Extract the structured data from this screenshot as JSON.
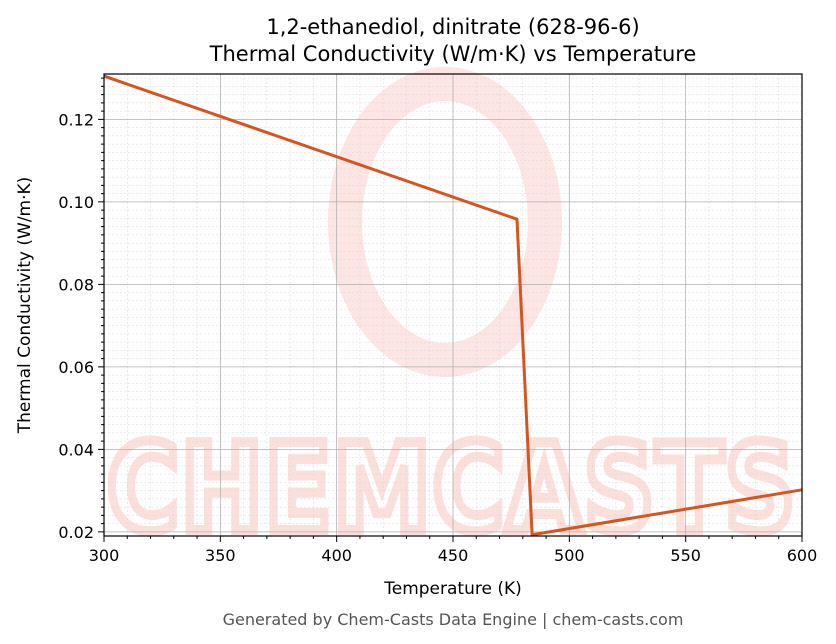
{
  "chart_data": {
    "type": "line",
    "title": "1,2-ethanediol, dinitrate (628-96-6)",
    "subtitle": "Thermal Conductivity (W/m·K) vs Temperature",
    "xlabel": "Temperature (K)",
    "ylabel": "Thermal Conductivity (W/m·K)",
    "xlim": [
      300,
      600
    ],
    "ylim": [
      0.019,
      0.131
    ],
    "xticks": [
      300,
      350,
      400,
      450,
      500,
      550,
      600
    ],
    "xtick_labels": [
      "300",
      "350",
      "400",
      "450",
      "500",
      "550",
      "600"
    ],
    "yticks": [
      0.02,
      0.04,
      0.06,
      0.08,
      0.1,
      0.12
    ],
    "ytick_labels": [
      "0.02",
      "0.04",
      "0.06",
      "0.08",
      "0.10",
      "0.12"
    ],
    "grid": true,
    "series": [
      {
        "color": "#d9531e",
        "x": [
          300,
          477.5,
          484,
          600
        ],
        "y": [
          0.1305,
          0.0958,
          0.0193,
          0.0302
        ]
      }
    ]
  },
  "watermark": {
    "text": "CHEMCASTS",
    "color": "#f9c6bf"
  },
  "footer": "Generated by Chem-Casts Data Engine | chem-casts.com"
}
